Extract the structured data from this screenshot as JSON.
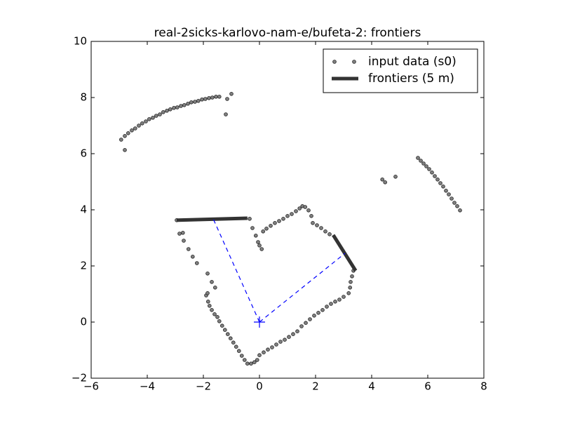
{
  "chart_data": {
    "type": "scatter",
    "title": "real-2sicks-karlovo-nam-e/bufeta-2: frontiers",
    "xlim": [
      -6,
      8
    ],
    "ylim": [
      -2,
      10
    ],
    "xticks": [
      {
        "value": -6,
        "label": "−6"
      },
      {
        "value": -4,
        "label": "−4"
      },
      {
        "value": -2,
        "label": "−2"
      },
      0,
      2,
      4,
      6,
      8
    ],
    "yticks": [
      {
        "value": -2,
        "label": "−2"
      },
      0,
      2,
      4,
      6,
      8,
      10
    ],
    "legend": "upper right",
    "series": [
      {
        "name": "input data (s0)",
        "color": "#808080",
        "mode": "markers",
        "x": [
          -4.93,
          -4.8,
          -4.68,
          -4.55,
          -4.43,
          -4.3,
          -4.18,
          -4.05,
          -3.93,
          -3.8,
          -3.68,
          -3.55,
          -3.43,
          -3.3,
          -3.18,
          -3.05,
          -2.93,
          -2.8,
          -2.68,
          -2.55,
          -2.43,
          -2.3,
          -2.18,
          -2.05,
          -1.93,
          -1.8,
          -1.68,
          -1.55,
          -1.43,
          -1.15,
          -1.0,
          -1.2,
          -4.8,
          5.65,
          5.75,
          5.85,
          5.95,
          6.05,
          6.15,
          6.25,
          6.35,
          6.45,
          6.55,
          6.65,
          6.75,
          6.85,
          6.95,
          7.05,
          7.15,
          4.38,
          4.48,
          4.85,
          -2.95,
          -2.85,
          -2.73,
          -2.7,
          -2.53,
          -2.38,
          -2.23,
          -1.85,
          -1.7,
          -1.58,
          -1.9,
          -1.85,
          -1.83,
          -1.78,
          -1.7,
          -1.6,
          -1.5,
          -1.43,
          -1.33,
          -1.23,
          -1.13,
          -1.03,
          -0.93,
          -0.83,
          -0.73,
          -0.63,
          -0.53,
          -0.43,
          -0.3,
          -0.18,
          -0.08,
          0,
          0.15,
          0.3,
          0.45,
          0.6,
          0.75,
          0.9,
          1.05,
          1.2,
          1.35,
          1.5,
          1.65,
          1.8,
          1.95,
          2.1,
          2.25,
          2.4,
          2.55,
          2.7,
          2.85,
          3.0,
          3.18,
          3.23,
          3.25,
          3.3,
          3.35,
          0.13,
          0.25,
          0.4,
          0.55,
          0.7,
          0.85,
          1.0,
          1.15,
          1.3,
          1.43,
          1.53,
          1.63,
          1.75,
          1.85,
          1.9,
          2.05,
          2.2,
          2.35,
          2.5,
          -0.35,
          -0.25,
          -0.13,
          -0.05,
          0,
          0.08
        ],
        "values": [
          6.5,
          6.63,
          6.73,
          6.83,
          6.9,
          7.0,
          7.08,
          7.15,
          7.23,
          7.28,
          7.35,
          7.4,
          7.48,
          7.53,
          7.58,
          7.63,
          7.65,
          7.7,
          7.73,
          7.78,
          7.83,
          7.85,
          7.88,
          7.93,
          7.95,
          7.98,
          8.0,
          8.03,
          8.03,
          7.95,
          8.13,
          7.4,
          6.13,
          5.85,
          5.75,
          5.65,
          5.55,
          5.45,
          5.33,
          5.2,
          5.08,
          4.95,
          4.83,
          4.68,
          4.55,
          4.4,
          4.25,
          4.13,
          3.98,
          5.08,
          4.98,
          5.18,
          3.63,
          3.15,
          3.18,
          2.9,
          2.6,
          2.33,
          2.1,
          1.73,
          1.43,
          1.23,
          0.95,
          1.03,
          0.73,
          0.58,
          0.43,
          0.28,
          0.18,
          0.03,
          -0.13,
          -0.28,
          -0.43,
          -0.58,
          -0.73,
          -0.88,
          -1.03,
          -1.2,
          -1.35,
          -1.48,
          -1.48,
          -1.43,
          -1.35,
          -1.18,
          -1.08,
          -0.98,
          -0.9,
          -0.8,
          -0.7,
          -0.63,
          -0.53,
          -0.43,
          -0.33,
          -0.15,
          -0.03,
          0.1,
          0.23,
          0.33,
          0.43,
          0.55,
          0.65,
          0.73,
          0.8,
          0.9,
          1.03,
          1.23,
          1.43,
          1.63,
          1.83,
          3.23,
          3.33,
          3.43,
          3.53,
          3.6,
          3.68,
          3.78,
          3.85,
          3.95,
          4.05,
          4.13,
          4.1,
          3.98,
          3.78,
          3.53,
          3.45,
          3.35,
          3.23,
          3.13,
          3.68,
          3.35,
          3.08,
          2.85,
          2.73,
          2.6
        ]
      },
      {
        "name": "frontiers (5 m)",
        "color": "#333333",
        "mode": "line",
        "x": [
          -2.95,
          -0.43,
          null,
          2.63,
          3.43
        ],
        "values": [
          3.63,
          3.7,
          null,
          3.1,
          1.83
        ]
      },
      {
        "color": "#0000ff",
        "mode": "dashed",
        "x": [
          0,
          -1.65,
          null,
          0,
          3.05
        ],
        "values": [
          0,
          3.68,
          null,
          0,
          2.45
        ]
      },
      {
        "color": "#0000ff",
        "mode": "plus",
        "x": [
          0
        ],
        "values": [
          0
        ]
      }
    ]
  }
}
